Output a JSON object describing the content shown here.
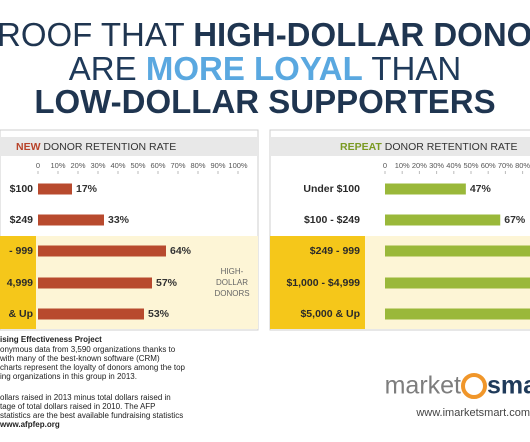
{
  "title": {
    "lines": [
      [
        {
          "text": "ROOF THAT ",
          "bold": false,
          "color": "#1f3550"
        },
        {
          "text": "HIGH-DOLLAR DONOR",
          "bold": true,
          "color": "#1f3550"
        }
      ],
      [
        {
          "text": "ARE ",
          "bold": false,
          "color": "#1f3a5a"
        },
        {
          "text": "MORE LOYAL",
          "bold": true,
          "color": "#5aa8e0"
        },
        {
          "text": " THAN",
          "bold": false,
          "color": "#1f3a5a"
        }
      ],
      [
        {
          "text": "LOW-DOLLAR SUPPORTERS",
          "bold": true,
          "color": "#1f3550"
        }
      ]
    ]
  },
  "chart_data": [
    {
      "type": "bar",
      "orientation": "horizontal",
      "title_prefix": "NEW",
      "title": " DONOR RETENTION RATE",
      "prefix_color": "#b8432a",
      "categories": [
        "$100",
        "$249",
        "- 999",
        "4,999",
        "& Up"
      ],
      "values": [
        17,
        33,
        64,
        57,
        53
      ],
      "value_labels": [
        "17%",
        "33%",
        "64%",
        "57%",
        "53%"
      ],
      "color": "#b84a2e",
      "xlim": [
        0,
        100
      ],
      "xticks": [
        0,
        {
          "value": 10,
          "label": "10%"
        },
        {
          "value": 20,
          "label": "20%"
        },
        {
          "value": 30,
          "label": "30%"
        },
        {
          "value": 40,
          "label": "40%"
        },
        {
          "value": 50,
          "label": "50%"
        },
        {
          "value": 60,
          "label": "60%"
        },
        {
          "value": 70,
          "label": "70%"
        },
        {
          "value": 80,
          "label": "80%"
        },
        {
          "value": 90,
          "label": "90%"
        },
        {
          "value": 100,
          "label": "100%"
        }
      ],
      "annotation": [
        "HIGH-",
        "DOLLAR",
        "DONORS"
      ]
    },
    {
      "type": "bar",
      "orientation": "horizontal",
      "title_prefix": "REPEAT",
      "title": " DONOR RETENTION RATE",
      "prefix_color": "#7a9a22",
      "categories": [
        "Under $100",
        "$100 - $249",
        "$249 - 999",
        "$1,000 - $4,999",
        "$5,000 & Up"
      ],
      "values": [
        47,
        67,
        85,
        85,
        85
      ],
      "value_labels": [
        "47%",
        "67%",
        null,
        null,
        null
      ],
      "color": "#9ab83a",
      "xlim": [
        0,
        100
      ],
      "xticks": [
        0,
        {
          "value": 10,
          "label": "10%"
        },
        {
          "value": 20,
          "label": "20%"
        },
        {
          "value": 30,
          "label": "30%"
        },
        {
          "value": 40,
          "label": "40%"
        },
        {
          "value": 50,
          "label": "50%"
        },
        {
          "value": 60,
          "label": "60%"
        },
        {
          "value": 70,
          "label": "70%"
        },
        {
          "value": 80,
          "label": "80%"
        }
      ]
    }
  ],
  "footer": {
    "lines": [
      "ising Effectiveness Project",
      "onymous data from 3,590 organizations thanks to",
      "with many of the best-known software (CRM)",
      "charts represent the loyalty of donors among the top",
      "ing organizations in this group in 2013.",
      "ollars raised in 2013 minus total dollars raised in",
      "tage of total dollars raised in 2010. The AFP",
      "statistics are the best available fundraising statistics",
      "www.afpfep.org"
    ],
    "logo_left": "market",
    "logo_right": "sma",
    "url": "www.imarketsmart.com"
  }
}
